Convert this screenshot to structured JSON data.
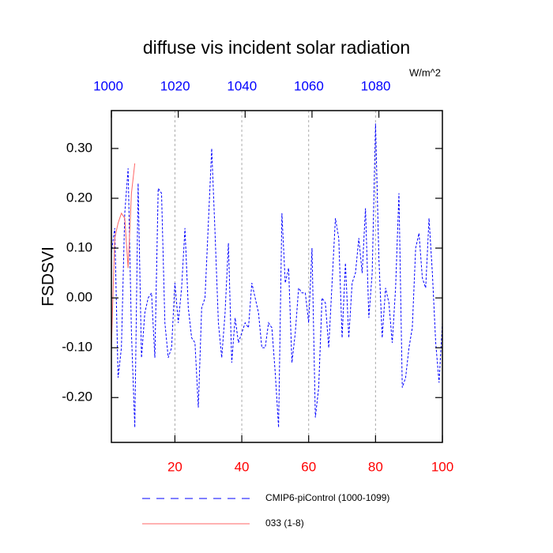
{
  "chart_data": {
    "type": "line",
    "title": "diffuse vis incident solar radiation",
    "ylabel": "FSDSVI",
    "units": "W/m^2",
    "xlim": [
      1,
      100
    ],
    "xticks": [
      20,
      40,
      60,
      80,
      100
    ],
    "xtick_color": "#ff0000",
    "x2lim": [
      1000,
      1099
    ],
    "x2ticks": [
      1000,
      1020,
      1040,
      1060,
      1080
    ],
    "x2tick_color": "#0000ff",
    "ylim": [
      -0.29,
      0.376
    ],
    "yticks": [
      {
        "value": -0.2,
        "label": "-0.20"
      },
      {
        "value": -0.1,
        "label": "-0.10"
      },
      {
        "value": 0,
        "label": "0.00"
      },
      {
        "value": 0.1,
        "label": "0.10"
      },
      {
        "value": 0.2,
        "label": "0.20"
      },
      {
        "value": 0.3,
        "label": "0.30"
      }
    ],
    "grid": "x",
    "series": [
      {
        "name": "CMIP6-piControl (1000-1099)",
        "color": "#0000ff",
        "dash": true,
        "x": [
          1,
          2,
          3,
          4,
          5,
          6,
          7,
          8,
          9,
          10,
          11,
          12,
          13,
          14,
          15,
          16,
          17,
          18,
          19,
          20,
          21,
          22,
          23,
          24,
          25,
          26,
          27,
          28,
          29,
          30,
          31,
          32,
          33,
          34,
          35,
          36,
          37,
          38,
          39,
          40,
          41,
          42,
          43,
          44,
          45,
          46,
          47,
          48,
          49,
          50,
          51,
          52,
          53,
          54,
          55,
          56,
          57,
          58,
          59,
          60,
          61,
          62,
          63,
          64,
          65,
          66,
          67,
          68,
          69,
          70,
          71,
          72,
          73,
          74,
          75,
          76,
          77,
          78,
          79,
          80,
          81,
          82,
          83,
          84,
          85,
          86,
          87,
          88,
          89,
          90,
          91,
          92,
          93,
          94,
          95,
          96,
          97,
          98,
          99,
          100
        ],
        "values": [
          0.09,
          0.14,
          -0.16,
          -0.1,
          0.17,
          0.26,
          -0.07,
          -0.26,
          0.23,
          -0.12,
          -0.03,
          0.0,
          0.01,
          -0.12,
          0.22,
          0.21,
          -0.05,
          -0.12,
          -0.1,
          0.03,
          -0.05,
          0.02,
          0.14,
          -0.02,
          -0.08,
          -0.09,
          -0.22,
          -0.02,
          0.0,
          0.15,
          0.3,
          0.13,
          -0.05,
          -0.12,
          -0.03,
          0.11,
          -0.13,
          -0.04,
          -0.09,
          -0.07,
          -0.05,
          -0.06,
          0.03,
          0.0,
          -0.03,
          -0.1,
          -0.1,
          -0.05,
          -0.06,
          -0.15,
          -0.26,
          0.17,
          0.03,
          0.06,
          -0.13,
          -0.07,
          0.02,
          0.01,
          0.01,
          -0.05,
          0.1,
          -0.24,
          -0.18,
          0.0,
          -0.01,
          -0.1,
          0.03,
          0.16,
          0.12,
          -0.08,
          0.07,
          -0.08,
          0.03,
          0.05,
          0.12,
          0.05,
          0.18,
          -0.04,
          0.05,
          0.35,
          0.08,
          -0.08,
          0.02,
          -0.01,
          -0.09,
          0.02,
          0.21,
          -0.18,
          -0.16,
          -0.1,
          -0.06,
          0.1,
          0.13,
          0.04,
          0.02,
          0.16,
          0.05,
          -0.09,
          -0.17,
          -0.05
        ]
      },
      {
        "name": "033 (1-8)",
        "color": "#ff6666",
        "dash": false,
        "x": [
          1,
          2,
          3,
          4,
          5,
          6,
          7,
          8
        ],
        "values": [
          -0.1,
          0.12,
          0.15,
          0.17,
          0.16,
          0.06,
          0.21,
          0.27
        ]
      }
    ]
  }
}
